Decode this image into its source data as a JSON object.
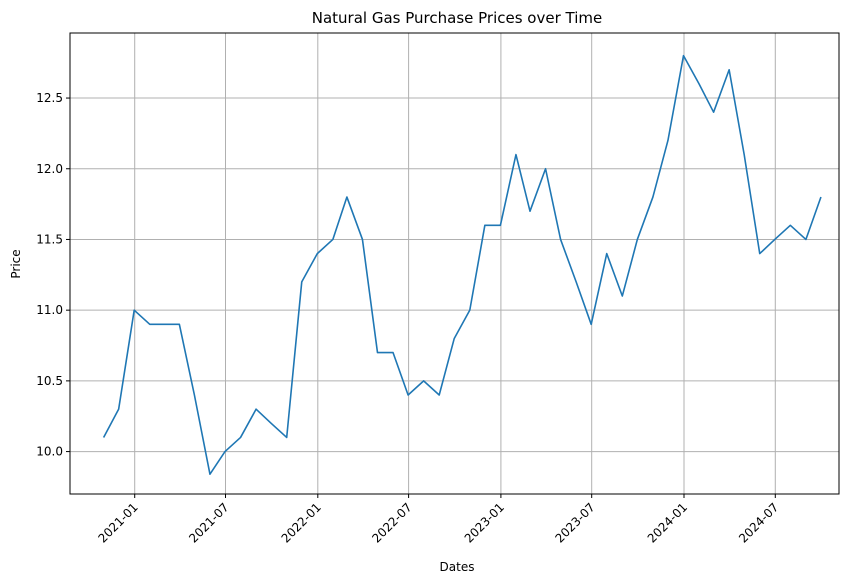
{
  "chart_data": {
    "type": "line",
    "title": "Natural Gas Purchase Prices over Time",
    "xlabel": "Dates",
    "ylabel": "Price",
    "grid": true,
    "legend": "none",
    "xlim": [
      "2020-08-25",
      "2024-11-05"
    ],
    "ylim": [
      9.7,
      12.96
    ],
    "x_ticks": [
      "2021-01",
      "2021-07",
      "2022-01",
      "2022-07",
      "2023-01",
      "2023-07",
      "2024-01",
      "2024-07"
    ],
    "y_ticks": [
      "10.0",
      "10.5",
      "11.0",
      "11.5",
      "12.0",
      "12.5"
    ],
    "colors": {
      "line": "#1f77b4",
      "grid": "#b0b0b0"
    },
    "series": [
      {
        "x": [
          "2020-10-31",
          "2020-11-30",
          "2020-12-31",
          "2021-01-31",
          "2021-02-28",
          "2021-03-31",
          "2021-04-30",
          "2021-05-31",
          "2021-06-30",
          "2021-07-31",
          "2021-08-31",
          "2021-09-30",
          "2021-10-31",
          "2021-11-30",
          "2021-12-31",
          "2022-01-31",
          "2022-02-28",
          "2022-03-31",
          "2022-04-30",
          "2022-05-31",
          "2022-06-30",
          "2022-07-31",
          "2022-08-31",
          "2022-09-30",
          "2022-10-31",
          "2022-11-30",
          "2022-12-31",
          "2023-01-31",
          "2023-02-28",
          "2023-03-31",
          "2023-04-30",
          "2023-05-31",
          "2023-06-30",
          "2023-07-31",
          "2023-08-31",
          "2023-09-30",
          "2023-10-31",
          "2023-11-30",
          "2023-12-31",
          "2024-01-31",
          "2024-02-29",
          "2024-03-31",
          "2024-04-30",
          "2024-05-31",
          "2024-06-30",
          "2024-07-31",
          "2024-08-31",
          "2024-09-30"
        ],
        "values": [
          10.1,
          10.3,
          11.0,
          10.9,
          10.9,
          10.9,
          10.4,
          9.84,
          10.0,
          10.1,
          10.3,
          10.2,
          10.1,
          11.2,
          11.4,
          11.5,
          11.8,
          11.5,
          10.7,
          10.7,
          10.4,
          10.5,
          10.4,
          10.8,
          11.0,
          11.6,
          11.6,
          12.1,
          11.7,
          12.0,
          11.5,
          11.2,
          10.9,
          11.4,
          11.1,
          11.5,
          11.8,
          12.2,
          12.8,
          12.6,
          12.4,
          12.7,
          12.1,
          11.4,
          11.5,
          11.6,
          11.5,
          11.8
        ]
      }
    ]
  }
}
